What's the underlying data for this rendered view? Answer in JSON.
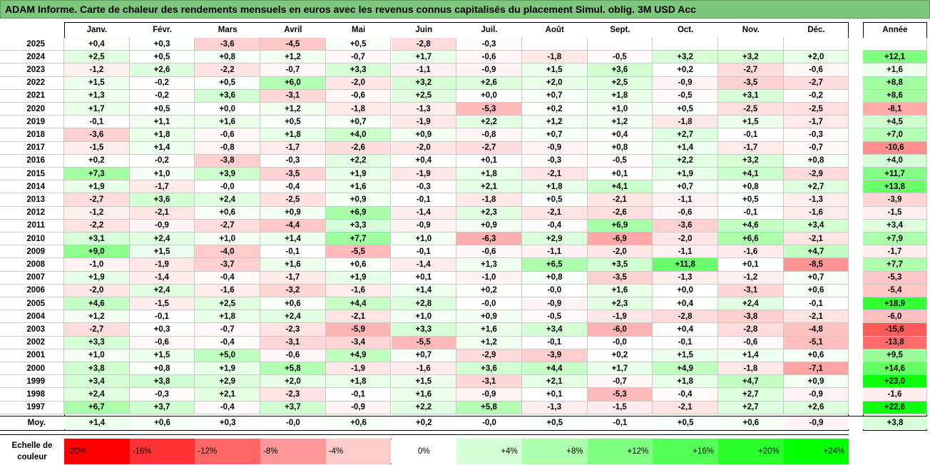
{
  "title": "ADAM Informe. Carte de chaleur des rendements mensuels en euros avec les revenus connus capitalisés du placement Simul. oblig. 3M USD Acc",
  "chart_data": {
    "type": "heatmap",
    "months": [
      "Janv.",
      "Févr.",
      "Mars",
      "Avril",
      "Mai",
      "Juin",
      "Juil.",
      "Août",
      "Sept.",
      "Oct.",
      "Nov.",
      "Déc."
    ],
    "year_label": "Année",
    "avg_label": "Moy.",
    "rows": [
      {
        "year": "2025",
        "months": [
          "+0,4",
          "+0,3",
          "-3,6",
          "-4,5",
          "+0,5",
          "-2,8",
          "-0,3",
          "",
          "",
          "",
          "",
          ""
        ],
        "annual": ""
      },
      {
        "year": "2024",
        "months": [
          "+2,5",
          "+0,5",
          "+0,8",
          "+1,2",
          "-0,7",
          "+1,7",
          "-0,6",
          "-1,8",
          "-0,5",
          "+3,2",
          "+3,2",
          "+2,0"
        ],
        "annual": "+12,1"
      },
      {
        "year": "2023",
        "months": [
          "-1,2",
          "+2,6",
          "-2,2",
          "-0,7",
          "+3,3",
          "-1,1",
          "-0,9",
          "+1,5",
          "+3,6",
          "+0,2",
          "-2,7",
          "-0,6"
        ],
        "annual": "+1,6"
      },
      {
        "year": "2022",
        "months": [
          "+1,5",
          "-0,2",
          "+0,5",
          "+6,0",
          "-2,0",
          "+3,2",
          "+2,6",
          "+2,0",
          "+2,5",
          "-0,9",
          "-3,5",
          "-2,7"
        ],
        "annual": "+8,8"
      },
      {
        "year": "2021",
        "months": [
          "+1,3",
          "-0,2",
          "+3,6",
          "-3,1",
          "-0,6",
          "+2,5",
          "+0,0",
          "+0,7",
          "+1,8",
          "-0,5",
          "+3,1",
          "-0,2"
        ],
        "annual": "+8,6"
      },
      {
        "year": "2020",
        "months": [
          "+1,7",
          "+0,5",
          "+0,0",
          "+1,2",
          "-1,8",
          "-1,3",
          "-5,3",
          "+0,2",
          "+1,0",
          "+0,5",
          "-2,5",
          "-2,5"
        ],
        "annual": "-8,1"
      },
      {
        "year": "2019",
        "months": [
          "-0,1",
          "+1,1",
          "+1,6",
          "+0,5",
          "+0,7",
          "-1,9",
          "+2,2",
          "+1,2",
          "+1,2",
          "-1,8",
          "+1,5",
          "-1,7"
        ],
        "annual": "+4,5"
      },
      {
        "year": "2018",
        "months": [
          "-3,6",
          "+1,8",
          "-0,6",
          "+1,8",
          "+4,0",
          "+0,9",
          "-0,8",
          "+0,7",
          "+0,4",
          "+2,7",
          "-0,1",
          "-0,3"
        ],
        "annual": "+7,0"
      },
      {
        "year": "2017",
        "months": [
          "-1,5",
          "+1,4",
          "-0,8",
          "-1,7",
          "-2,6",
          "-2,0",
          "-2,7",
          "-0,9",
          "+0,8",
          "+1,4",
          "-1,7",
          "-0,7"
        ],
        "annual": "-10,6"
      },
      {
        "year": "2016",
        "months": [
          "+0,2",
          "-0,2",
          "-3,8",
          "-0,3",
          "+2,2",
          "+0,4",
          "+0,1",
          "-0,3",
          "-0,5",
          "+2,2",
          "+3,2",
          "+0,8"
        ],
        "annual": "+4,0"
      },
      {
        "year": "2015",
        "months": [
          "+7,3",
          "+1,0",
          "+3,9",
          "-3,5",
          "+1,9",
          "-1,9",
          "+1,8",
          "-2,1",
          "+0,1",
          "+1,9",
          "+4,1",
          "-2,9"
        ],
        "annual": "+11,7"
      },
      {
        "year": "2014",
        "months": [
          "+1,9",
          "-1,7",
          "-0,0",
          "-0,4",
          "+1,6",
          "-0,3",
          "+2,1",
          "+1,8",
          "+4,1",
          "+0,7",
          "+0,8",
          "+2,7"
        ],
        "annual": "+13,8"
      },
      {
        "year": "2013",
        "months": [
          "-2,7",
          "+3,6",
          "+2,4",
          "-2,5",
          "+0,9",
          "-0,1",
          "-1,8",
          "+0,5",
          "-2,1",
          "-1,1",
          "+0,5",
          "-1,3"
        ],
        "annual": "-3,9"
      },
      {
        "year": "2012",
        "months": [
          "-1,2",
          "-2,1",
          "+0,6",
          "+0,9",
          "+6,9",
          "-1,4",
          "+2,3",
          "-2,1",
          "-2,6",
          "-0,6",
          "-0,1",
          "-1,6"
        ],
        "annual": "-1,5"
      },
      {
        "year": "2011",
        "months": [
          "-2,2",
          "-0,9",
          "-2,7",
          "-4,4",
          "+3,3",
          "-0,9",
          "+0,9",
          "-0,4",
          "+6,9",
          "-3,6",
          "+4,6",
          "+3,4"
        ],
        "annual": "+3,4"
      },
      {
        "year": "2010",
        "months": [
          "+3,1",
          "+2,4",
          "+1,0",
          "+1,4",
          "+7,7",
          "+1,0",
          "-6,3",
          "+2,9",
          "-6,9",
          "-2,0",
          "+6,6",
          "-2,1"
        ],
        "annual": "+7,9"
      },
      {
        "year": "2009",
        "months": [
          "+9,0",
          "+1,5",
          "-4,0",
          "-0,1",
          "-5,5",
          "-0,1",
          "-0,6",
          "-1,1",
          "-2,0",
          "-1,1",
          "-1,6",
          "+4,7"
        ],
        "annual": "-1,7"
      },
      {
        "year": "2008",
        "months": [
          "-1,0",
          "-1,9",
          "-3,7",
          "+1,6",
          "+0,6",
          "-1,4",
          "+1,3",
          "+6,5",
          "+3,5",
          "+11,8",
          "+0,1",
          "-8,5"
        ],
        "annual": "+7,7"
      },
      {
        "year": "2007",
        "months": [
          "+1,9",
          "-1,4",
          "-0,4",
          "-1,7",
          "+1,9",
          "+0,1",
          "-1,0",
          "+0,8",
          "-3,5",
          "-1,3",
          "-1,2",
          "+0,7"
        ],
        "annual": "-5,3"
      },
      {
        "year": "2006",
        "months": [
          "-2,0",
          "+2,4",
          "-1,6",
          "-3,2",
          "-1,6",
          "+1,4",
          "+0,2",
          "-0,0",
          "+1,6",
          "+0,0",
          "-3,1",
          "+0,6"
        ],
        "annual": "-5,4"
      },
      {
        "year": "2005",
        "months": [
          "+4,6",
          "-1,5",
          "+2,5",
          "+0,6",
          "+4,4",
          "+2,8",
          "-0,0",
          "-0,9",
          "+2,3",
          "+0,4",
          "+2,4",
          "-0,1"
        ],
        "annual": "+18,9"
      },
      {
        "year": "2004",
        "months": [
          "+1,2",
          "-0,1",
          "+1,8",
          "+2,4",
          "-2,1",
          "+1,0",
          "+0,9",
          "-0,5",
          "-1,9",
          "-2,8",
          "-3,8",
          "-2,1"
        ],
        "annual": "-6,0"
      },
      {
        "year": "2003",
        "months": [
          "-2,7",
          "+0,3",
          "-0,7",
          "-2,3",
          "-5,9",
          "+3,3",
          "+1,6",
          "+3,4",
          "-6,0",
          "+0,4",
          "-2,8",
          "-4,8"
        ],
        "annual": "-15,6"
      },
      {
        "year": "2002",
        "months": [
          "+3,3",
          "-0,6",
          "-0,4",
          "-3,1",
          "-3,4",
          "-5,5",
          "+1,2",
          "-0,1",
          "-0,0",
          "-0,1",
          "-0,6",
          "-5,1"
        ],
        "annual": "-13,8"
      },
      {
        "year": "2001",
        "months": [
          "+1,0",
          "+1,5",
          "+5,0",
          "-0,6",
          "+4,9",
          "+0,7",
          "-2,9",
          "-3,9",
          "+0,2",
          "+1,5",
          "+1,4",
          "+0,6"
        ],
        "annual": "+9,5"
      },
      {
        "year": "2000",
        "months": [
          "+3,8",
          "+0,8",
          "+1,9",
          "+5,8",
          "-1,9",
          "-1,6",
          "+3,6",
          "+4,4",
          "+1,7",
          "+4,9",
          "-1,8",
          "-7,1"
        ],
        "annual": "+14,6"
      },
      {
        "year": "1999",
        "months": [
          "+3,4",
          "+3,8",
          "+2,9",
          "+2,0",
          "+1,8",
          "+1,5",
          "-3,1",
          "+2,1",
          "-0,7",
          "+1,8",
          "+4,7",
          "+0,9"
        ],
        "annual": "+23,0"
      },
      {
        "year": "1998",
        "months": [
          "+2,4",
          "-0,3",
          "+2,1",
          "-2,3",
          "-0,1",
          "+1,6",
          "-0,9",
          "+0,1",
          "-5,3",
          "-0,4",
          "+2,7",
          "-0,9"
        ],
        "annual": "-1,6"
      },
      {
        "year": "1997",
        "months": [
          "+6,7",
          "+3,7",
          "-0,4",
          "+3,7",
          "-0,9",
          "+2,2",
          "+5,8",
          "-1,3",
          "-1,5",
          "-2,1",
          "+2,7",
          "+2,6"
        ],
        "annual": "+22,6"
      }
    ],
    "averages": [
      "+1,4",
      "+0,6",
      "+0,3",
      "-0,0",
      "+0,6",
      "+0,2",
      "-0,0",
      "+0,5",
      "-0,1",
      "+0,5",
      "+0,6",
      "-0,9"
    ],
    "avg_annual": "+3,8",
    "scale_label": "Echelle de couleur",
    "scale": [
      {
        "label": "-20%",
        "value": -20
      },
      {
        "label": "-16%",
        "value": -16
      },
      {
        "label": "-12%",
        "value": -12
      },
      {
        "label": "-8%",
        "value": -8
      },
      {
        "label": "-4%",
        "value": -4
      },
      {
        "label": "0%",
        "value": 0
      },
      {
        "label": "+4%",
        "value": 4
      },
      {
        "label": "+8%",
        "value": 8
      },
      {
        "label": "+12%",
        "value": 12
      },
      {
        "label": "+16%",
        "value": 16
      },
      {
        "label": "+20%",
        "value": 20
      },
      {
        "label": "+24%",
        "value": 24
      }
    ],
    "colors": {
      "negative_max": "#ff0000",
      "neutral": "#ffffff",
      "positive_max": "#00ff00",
      "title_bar": "#7dc77d"
    }
  }
}
